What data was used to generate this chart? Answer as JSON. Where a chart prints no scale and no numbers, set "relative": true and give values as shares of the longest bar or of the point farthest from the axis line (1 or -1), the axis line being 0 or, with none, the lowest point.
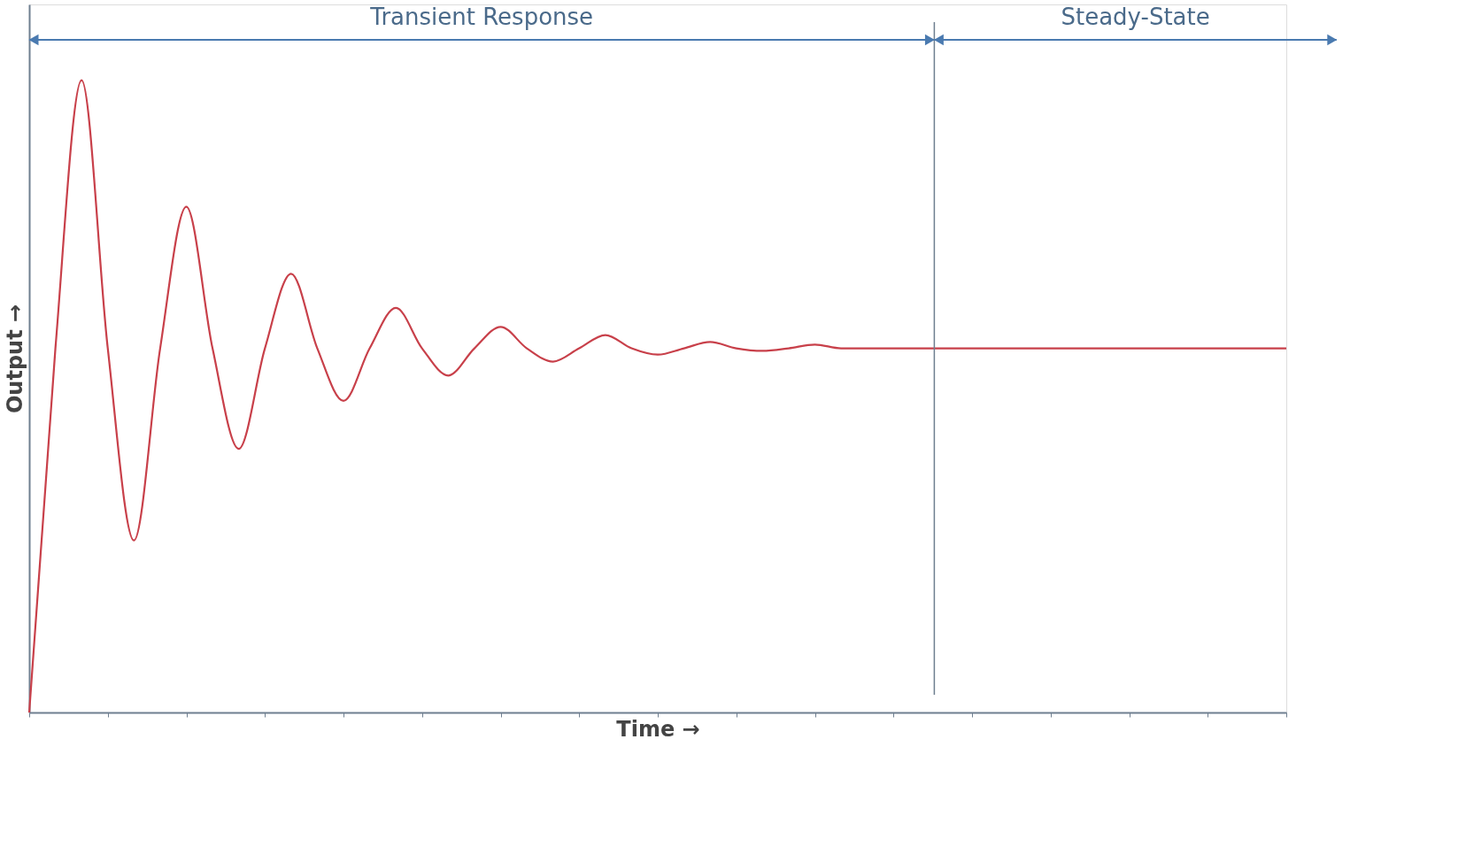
{
  "chart_data": {
    "type": "line",
    "relative": true,
    "xlabel": "Time →",
    "ylabel": "Output →",
    "categories": [
      null,
      null,
      null,
      null,
      null,
      null,
      null,
      null,
      null,
      null,
      null,
      null,
      null,
      null,
      null,
      null,
      null,
      null,
      null,
      null,
      null,
      null,
      null,
      null,
      null,
      null,
      null,
      null,
      null,
      null,
      null,
      null,
      null,
      null,
      null,
      null,
      null,
      null,
      null,
      null,
      null,
      null,
      null,
      null,
      null,
      null,
      null,
      null,
      null
    ],
    "series": [
      {
        "color": "#c8404a",
        "values": [
          0,
          0.576,
          1.0,
          0.576,
          0.272,
          0.576,
          0.8,
          0.576,
          0.417,
          0.576,
          0.694,
          0.576,
          0.493,
          0.576,
          0.64,
          0.576,
          0.533,
          0.576,
          0.61,
          0.576,
          0.555,
          0.576,
          0.597,
          0.576,
          0.566,
          0.576,
          0.586,
          0.576,
          0.572,
          0.576,
          0.582,
          0.576,
          0.576,
          0.576,
          0.576,
          0.576,
          0.576,
          0.576,
          0.576,
          0.576,
          0.576,
          0.576,
          0.576,
          0.576,
          0.576,
          0.576,
          0.576,
          0.576,
          0.576
        ]
      }
    ],
    "annotations": [
      "Transient Response",
      "Steady-State"
    ],
    "marker": "none",
    "line_style": "solid",
    "grid": false
  }
}
